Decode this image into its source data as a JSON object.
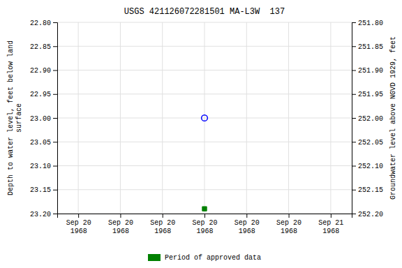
{
  "chart_data": {
    "type": "scatter",
    "title": "USGS 421126072281501 MA-L3W  137",
    "y_label": "Depth to water level, feet below land\nsurface",
    "y2_label": "Groundwater level above NGVD 1929, feet",
    "categories": [
      "Sep 20\n1968",
      "Sep 20\n1968",
      "Sep 20\n1968",
      "Sep 20\n1968",
      "Sep 20\n1968",
      "Sep 20\n1968",
      "Sep 21\n1968"
    ],
    "series": [
      {
        "color": "#0000ff",
        "marker": "open-circle",
        "values": [
          null,
          null,
          null,
          23.0,
          null,
          null,
          null
        ]
      },
      {
        "name": "Period of approved data",
        "color": "#008000",
        "marker": "square",
        "values": [
          null,
          null,
          null,
          23.19,
          null,
          null,
          null
        ]
      }
    ],
    "ylim": [
      23.2,
      22.8
    ],
    "yticks": [
      {
        "value": 22.8,
        "label": "22.80"
      },
      22.85,
      {
        "value": 22.9,
        "label": "22.90"
      },
      22.95,
      {
        "value": 23.0,
        "label": "23.00"
      },
      23.05,
      {
        "value": 23.1,
        "label": "23.10"
      },
      23.15,
      {
        "value": 23.2,
        "label": "23.20"
      }
    ],
    "y2lim": [
      252.2,
      251.8
    ],
    "y2ticks": [
      {
        "value": 251.8,
        "label": "251.80"
      },
      251.85,
      {
        "value": 251.9,
        "label": "251.90"
      },
      251.95,
      {
        "value": 252.0,
        "label": "252.00"
      },
      252.05,
      {
        "value": 252.1,
        "label": "252.10"
      },
      252.15,
      {
        "value": 252.2,
        "label": "252.20"
      }
    ],
    "grid": true,
    "legend": "bottom"
  }
}
